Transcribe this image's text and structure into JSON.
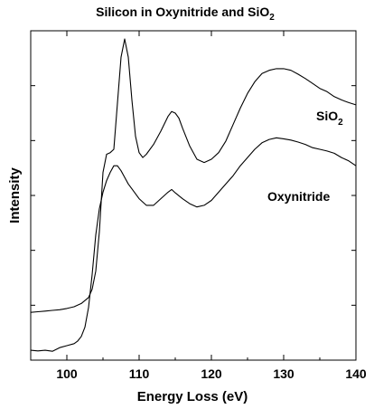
{
  "chart_data": {
    "type": "line",
    "title": {
      "main": "Silicon in Oxynitride and SiO",
      "subscript": "2"
    },
    "xlabel": "Energy Loss (eV)",
    "ylabel": "Intensity",
    "xlim": [
      95,
      140
    ],
    "ylim": [
      0,
      1
    ],
    "x_ticks": [
      100,
      110,
      120,
      130,
      140
    ],
    "y_tick_labels_shown": false,
    "grid": false,
    "legend": "none",
    "line_color": "#000000",
    "series": [
      {
        "name": "SiO",
        "name_subscript": "2",
        "points": [
          [
            95.0,
            0.145
          ],
          [
            96.0,
            0.147
          ],
          [
            97.0,
            0.149
          ],
          [
            98.0,
            0.151
          ],
          [
            99.0,
            0.153
          ],
          [
            100.0,
            0.157
          ],
          [
            101.0,
            0.162
          ],
          [
            102.0,
            0.172
          ],
          [
            103.0,
            0.19
          ],
          [
            103.5,
            0.215
          ],
          [
            104.0,
            0.27
          ],
          [
            104.5,
            0.39
          ],
          [
            105.0,
            0.57
          ],
          [
            105.5,
            0.625
          ],
          [
            106.0,
            0.63
          ],
          [
            106.5,
            0.64
          ],
          [
            107.0,
            0.78
          ],
          [
            107.5,
            0.92
          ],
          [
            108.0,
            0.975
          ],
          [
            108.5,
            0.92
          ],
          [
            109.0,
            0.79
          ],
          [
            109.5,
            0.68
          ],
          [
            110.0,
            0.63
          ],
          [
            110.5,
            0.615
          ],
          [
            111.0,
            0.625
          ],
          [
            112.0,
            0.655
          ],
          [
            113.0,
            0.695
          ],
          [
            114.0,
            0.74
          ],
          [
            114.5,
            0.755
          ],
          [
            115.0,
            0.75
          ],
          [
            115.5,
            0.735
          ],
          [
            116.0,
            0.705
          ],
          [
            117.0,
            0.65
          ],
          [
            118.0,
            0.61
          ],
          [
            119.0,
            0.6
          ],
          [
            120.0,
            0.61
          ],
          [
            121.0,
            0.63
          ],
          [
            122.0,
            0.665
          ],
          [
            123.0,
            0.715
          ],
          [
            124.0,
            0.765
          ],
          [
            125.0,
            0.81
          ],
          [
            126.0,
            0.845
          ],
          [
            127.0,
            0.87
          ],
          [
            128.0,
            0.88
          ],
          [
            129.0,
            0.885
          ],
          [
            130.0,
            0.885
          ],
          [
            131.0,
            0.88
          ],
          [
            132.0,
            0.868
          ],
          [
            133.0,
            0.855
          ],
          [
            134.0,
            0.84
          ],
          [
            135.0,
            0.825
          ],
          [
            136.0,
            0.815
          ],
          [
            137.0,
            0.8
          ],
          [
            138.0,
            0.79
          ],
          [
            139.0,
            0.782
          ],
          [
            140.0,
            0.775
          ]
        ]
      },
      {
        "name": "Oxynitride",
        "points": [
          [
            95.0,
            0.03
          ],
          [
            96.0,
            0.028
          ],
          [
            97.0,
            0.03
          ],
          [
            98.0,
            0.027
          ],
          [
            99.0,
            0.038
          ],
          [
            100.0,
            0.044
          ],
          [
            101.0,
            0.05
          ],
          [
            101.5,
            0.058
          ],
          [
            102.0,
            0.072
          ],
          [
            102.5,
            0.1
          ],
          [
            103.0,
            0.16
          ],
          [
            103.5,
            0.26
          ],
          [
            104.0,
            0.38
          ],
          [
            104.5,
            0.46
          ],
          [
            105.0,
            0.51
          ],
          [
            105.5,
            0.545
          ],
          [
            106.0,
            0.57
          ],
          [
            106.5,
            0.59
          ],
          [
            107.0,
            0.59
          ],
          [
            107.5,
            0.575
          ],
          [
            108.0,
            0.555
          ],
          [
            108.5,
            0.535
          ],
          [
            109.0,
            0.52
          ],
          [
            110.0,
            0.49
          ],
          [
            111.0,
            0.47
          ],
          [
            112.0,
            0.47
          ],
          [
            113.0,
            0.49
          ],
          [
            114.0,
            0.51
          ],
          [
            114.5,
            0.518
          ],
          [
            115.0,
            0.508
          ],
          [
            116.0,
            0.49
          ],
          [
            117.0,
            0.475
          ],
          [
            118.0,
            0.465
          ],
          [
            119.0,
            0.47
          ],
          [
            120.0,
            0.485
          ],
          [
            121.0,
            0.51
          ],
          [
            122.0,
            0.535
          ],
          [
            123.0,
            0.56
          ],
          [
            124.0,
            0.59
          ],
          [
            125.0,
            0.615
          ],
          [
            126.0,
            0.64
          ],
          [
            127.0,
            0.66
          ],
          [
            128.0,
            0.67
          ],
          [
            129.0,
            0.675
          ],
          [
            130.0,
            0.672
          ],
          [
            131.0,
            0.668
          ],
          [
            132.0,
            0.662
          ],
          [
            133.0,
            0.655
          ],
          [
            134.0,
            0.645
          ],
          [
            135.0,
            0.64
          ],
          [
            136.0,
            0.635
          ],
          [
            137.0,
            0.628
          ],
          [
            138.0,
            0.615
          ],
          [
            139.0,
            0.605
          ],
          [
            140.0,
            0.59
          ]
        ]
      }
    ]
  }
}
